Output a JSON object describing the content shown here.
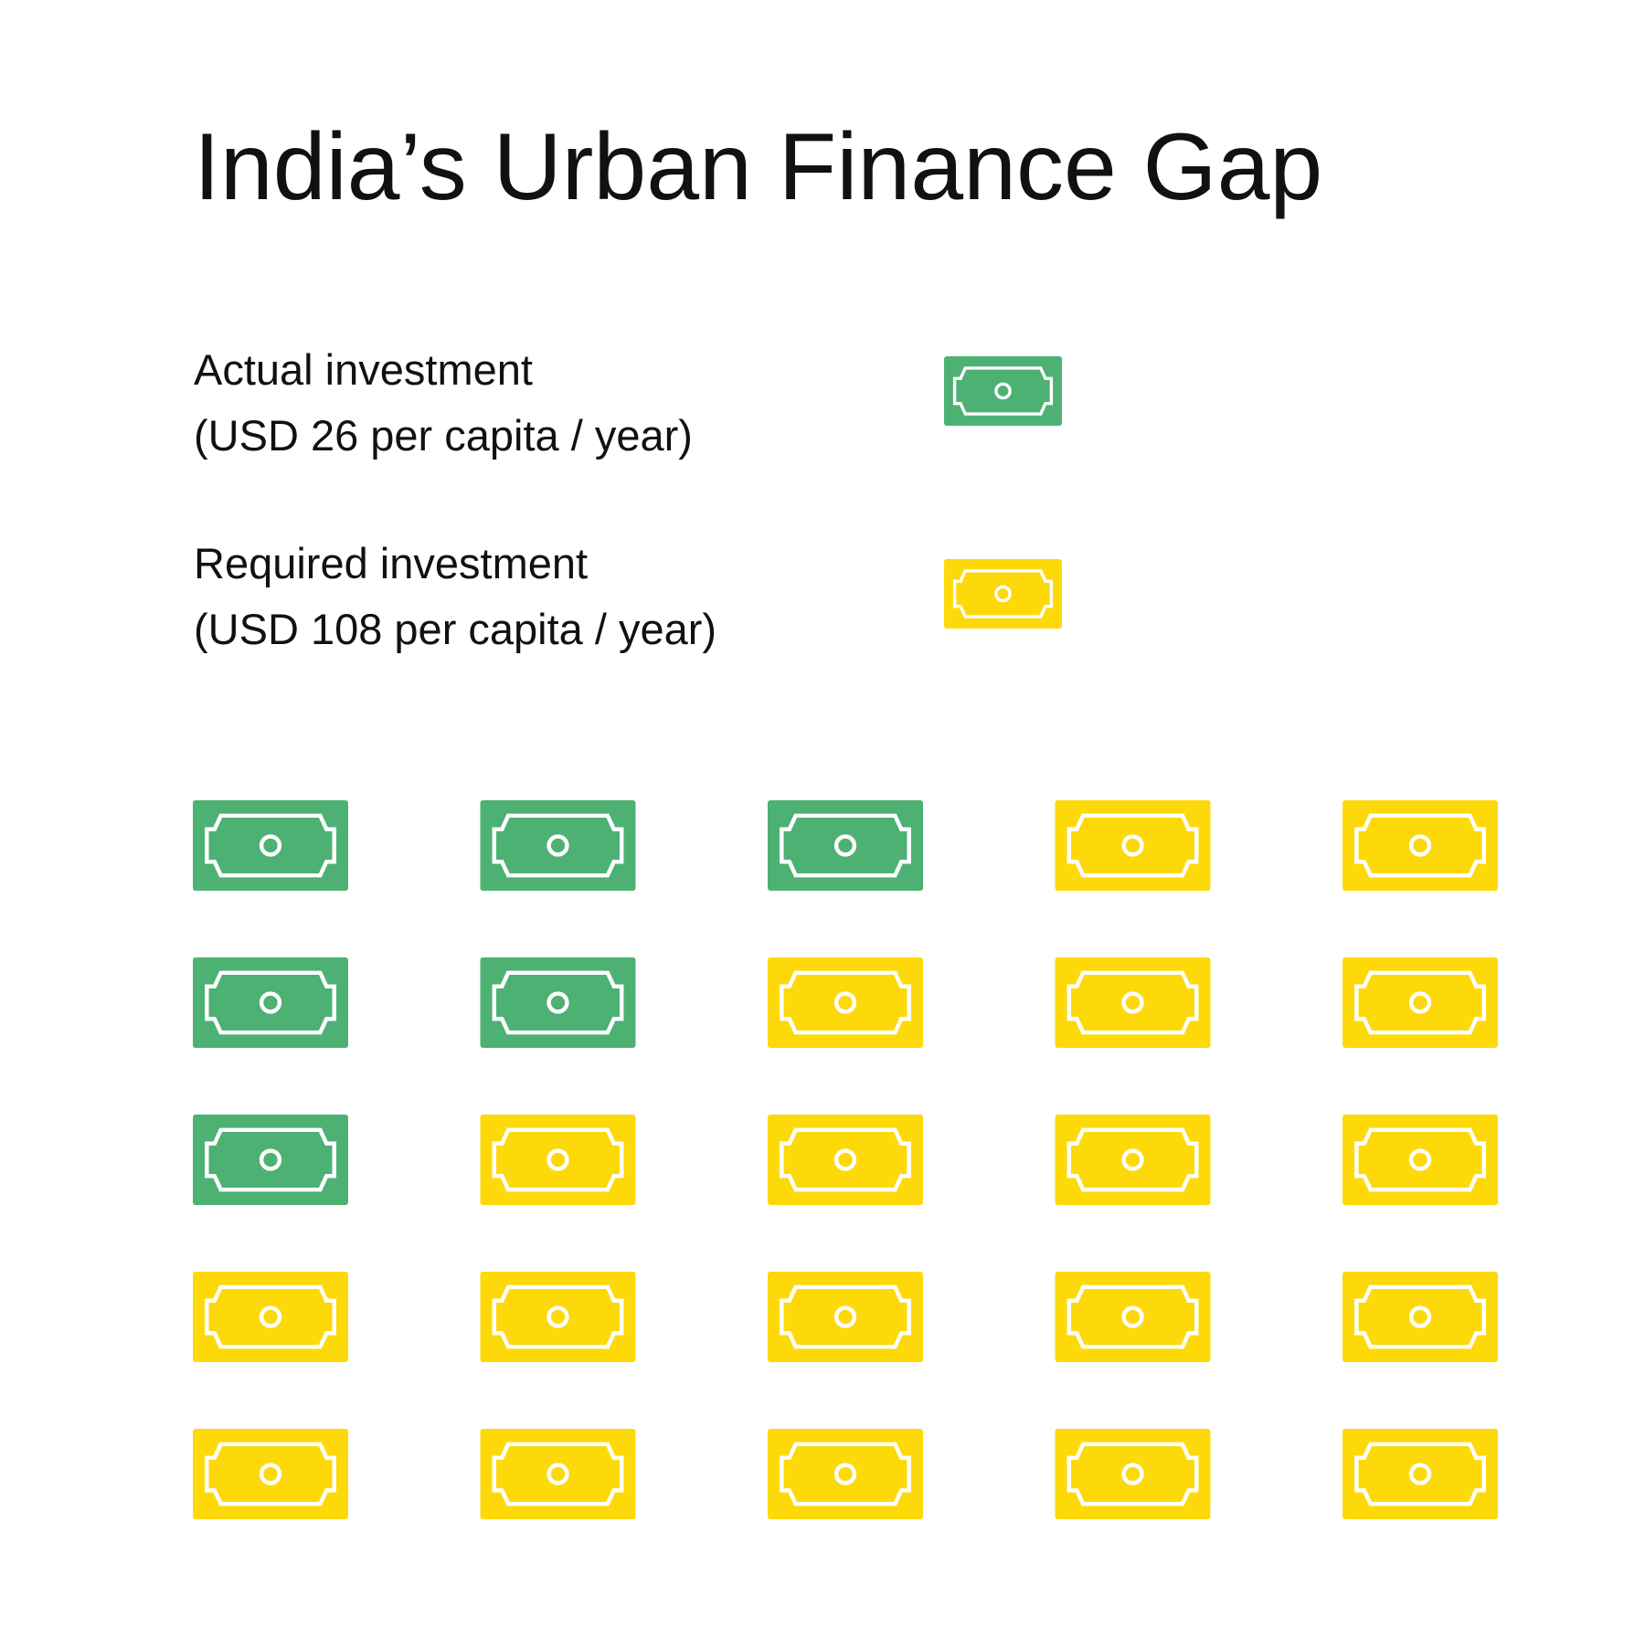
{
  "chart_data": {
    "type": "waffle",
    "title": "India’s Urban Finance Gap",
    "columns": 5,
    "series": [
      {
        "name": "Actual investment",
        "note": "(USD 26 per capita / year)",
        "color": "#4db173",
        "count": 6
      },
      {
        "name": "Required investment",
        "note": "(USD 108 per capita / year)",
        "color": "#fdd90a",
        "count": 19
      }
    ]
  }
}
